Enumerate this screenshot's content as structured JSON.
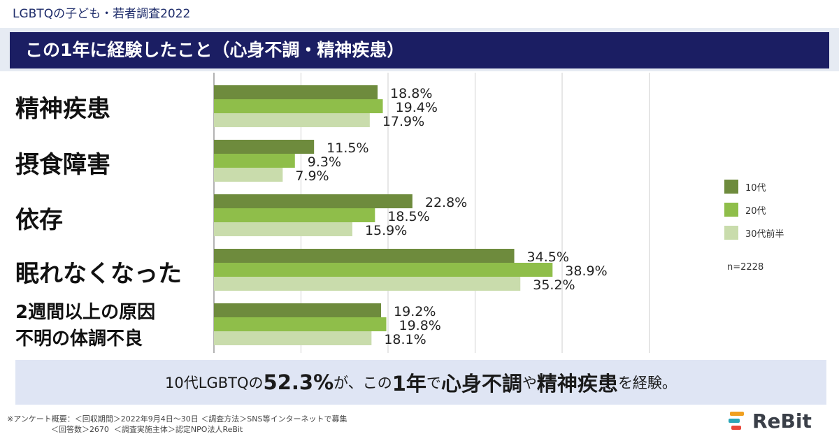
{
  "survey_tag": "LGBTQの子ども・若者調査2022",
  "title": "この1年に経験したこと（心身不調・精神疾患）",
  "chart_data": {
    "type": "bar",
    "orientation": "horizontal",
    "categories": [
      "精神疾患",
      "摂食障害",
      "依存",
      "眠れなくなった",
      "2週間以上の原因不明の体調不良"
    ],
    "category_lines": [
      [
        "精神疾患"
      ],
      [
        "摂食障害"
      ],
      [
        "依存"
      ],
      [
        "眠れなくなった"
      ],
      [
        "2週間以上の原因",
        "不明の体調不良"
      ]
    ],
    "series": [
      {
        "name": "10代",
        "color": "#6e8b3d",
        "values": [
          18.8,
          11.5,
          22.8,
          34.5,
          19.2
        ]
      },
      {
        "name": "20代",
        "color": "#8fbe4a",
        "values": [
          19.4,
          9.3,
          18.5,
          38.9,
          19.8
        ]
      },
      {
        "name": "30代前半",
        "color": "#c9dcac",
        "values": [
          17.9,
          7.9,
          15.9,
          35.2,
          18.1
        ]
      }
    ],
    "value_suffix": "%",
    "xlim": [
      0,
      50
    ],
    "grid": "vertical",
    "legend_position": "right"
  },
  "n_note": "n=2228",
  "summary": {
    "part1": "10代LGBTQの",
    "part2": "52.3%",
    "part3": "が、この",
    "part4": "1年",
    "part5": "で",
    "part6": "心身不調",
    "part7": "や",
    "part8": "精神疾患",
    "part9": "を経験。"
  },
  "footnote": {
    "line1": "※アンケート概要：＜回収期間＞2022年9月4日〜30日 ＜調査方法＞SNS等インターネットで募集",
    "line2": "                  ＜回答数＞2670  ＜調査実施主体＞認定NPO法人ReBit"
  },
  "logo_text": "ReBit",
  "colors": {
    "title_bar": "#1b1e63",
    "summary_bg": "#dfe5f4",
    "band_bg": "#e6ebf3"
  }
}
